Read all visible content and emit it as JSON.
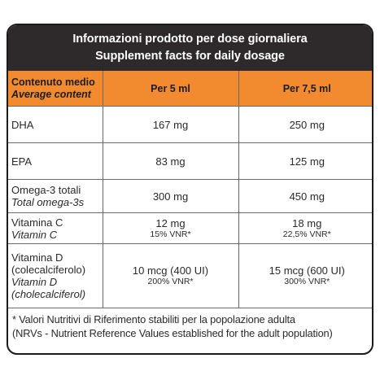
{
  "title": {
    "line1": "Informazioni prodotto per dose giornaliera",
    "line2": "Supplement facts for daily dosage"
  },
  "header": {
    "label_it": "Contenuto medio",
    "label_en": "Average content",
    "col1": "Per 5 ml",
    "col2": "Per 7,5 ml"
  },
  "rows": [
    {
      "label_it": "DHA",
      "v1": "167 mg",
      "v2": "250 mg"
    },
    {
      "label_it": "EPA",
      "v1": "83 mg",
      "v2": "125 mg"
    },
    {
      "label_it": "Omega-3 totali",
      "label_en": "Total omega-3s",
      "v1": "300 mg",
      "v2": "450 mg"
    },
    {
      "label_it": "Vitamina C",
      "label_en": "Vitamin C",
      "v1": "12 mg",
      "v1_sub": "15% VNR*",
      "v2": "18 mg",
      "v2_sub": "22,5% VNR*"
    },
    {
      "label_it_1": "Vitamina D",
      "label_it_2": "(colecalciferolo)",
      "label_en_1": "Vitamin D",
      "label_en_2": "(cholecalciferol)",
      "v1": "10 mcg (400 UI)",
      "v1_sub": "200% VNR*",
      "v2": "15 mcg (600 UI)",
      "v2_sub": "300% VNR*"
    }
  ],
  "footnote": {
    "line1": "* Valori Nutritivi di Riferimento stabiliti per la popolazione adulta",
    "line2": "(NRVs - Nutrient Reference Values established for the adult population)"
  },
  "colors": {
    "title_bg": "#2e2a2b",
    "header_bg": "#f28a30",
    "border": "#1b1b1b"
  }
}
